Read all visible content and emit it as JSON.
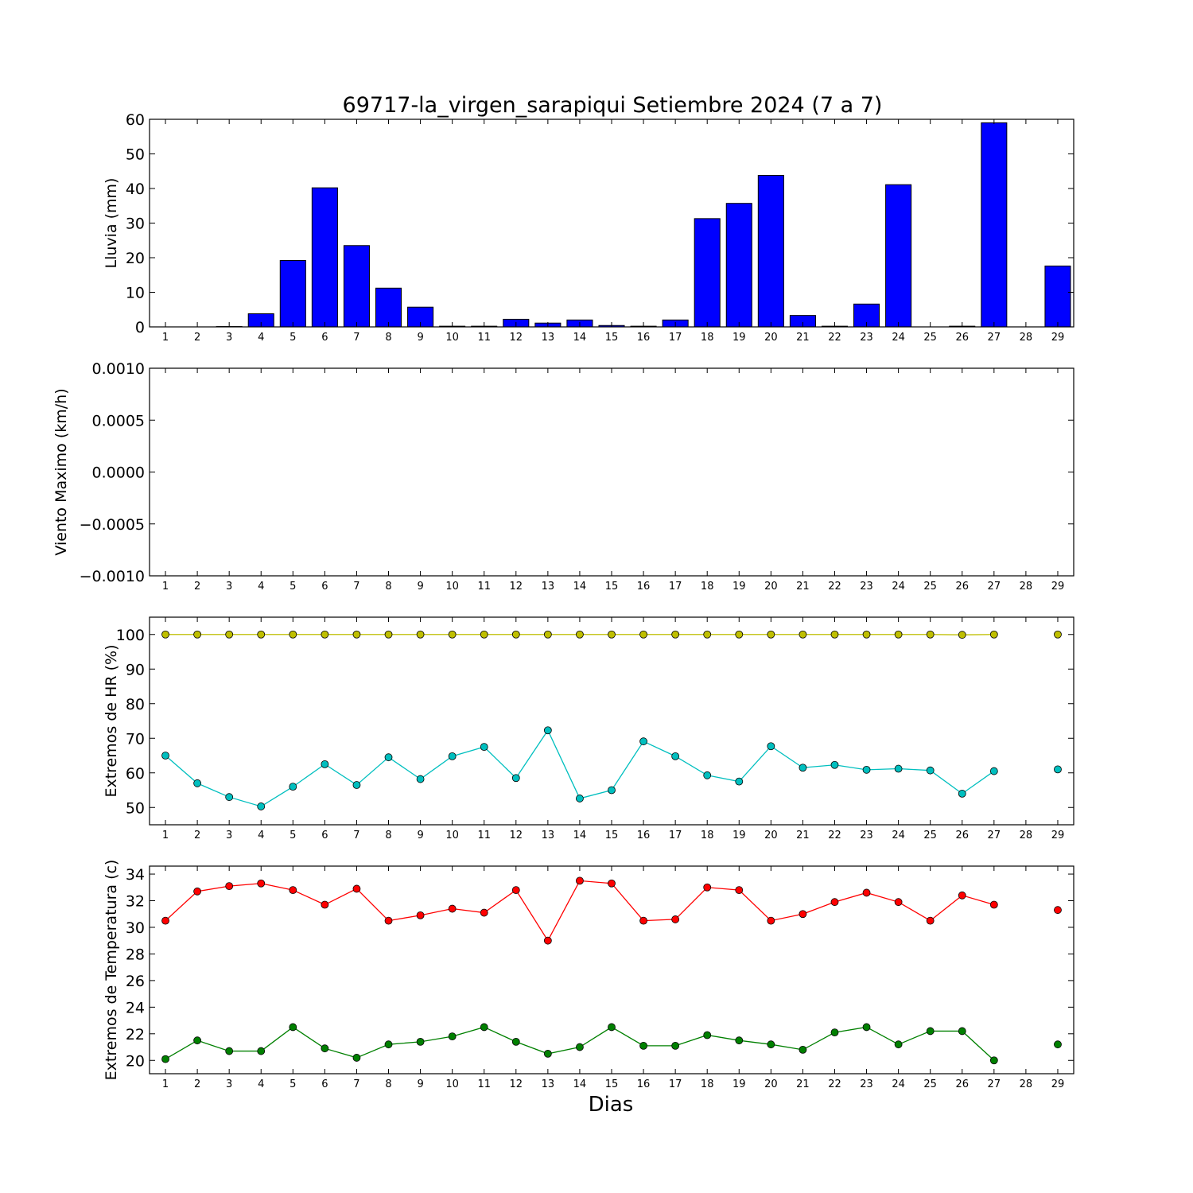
{
  "title": "69717-la_virgen_sarapiqui Setiembre 2024  (7 a 7)",
  "xlabel": "Dias",
  "chart_data": [
    {
      "type": "bar",
      "ylabel": "Lluvia (mm)",
      "ylim": [
        0,
        60
      ],
      "yticks": [
        "0",
        "10",
        "20",
        "30",
        "40",
        "50",
        "60"
      ],
      "xticks": [
        "1",
        "2",
        "3",
        "4",
        "5",
        "6",
        "7",
        "8",
        "9",
        "10",
        "11",
        "12",
        "13",
        "14",
        "15",
        "16",
        "17",
        "18",
        "19",
        "20",
        "21",
        "22",
        "23",
        "24",
        "25",
        "26",
        "27",
        "28",
        "29"
      ],
      "color": "#0000ff",
      "x": [
        1,
        2,
        3,
        4,
        5,
        6,
        7,
        8,
        9,
        10,
        11,
        12,
        13,
        14,
        15,
        16,
        17,
        18,
        19,
        20,
        21,
        22,
        23,
        24,
        25,
        26,
        27,
        28,
        29
      ],
      "values": [
        0,
        0,
        0.1,
        3.8,
        19.2,
        40.2,
        23.5,
        11.2,
        5.7,
        0.2,
        0.2,
        2.2,
        1.1,
        2.0,
        0.4,
        0.2,
        2.0,
        31.3,
        35.7,
        43.8,
        3.3,
        0.2,
        6.6,
        41.1,
        0,
        0.2,
        59.0,
        0,
        17.6
      ]
    },
    {
      "type": "line",
      "ylabel": "Viento Maximo (km/h)",
      "ylim": [
        -0.001,
        0.001
      ],
      "yticks": [
        "−0.0010",
        "−0.0005",
        "0.0000",
        "0.0005",
        "0.0010"
      ],
      "xticks": [
        "1",
        "2",
        "3",
        "4",
        "5",
        "6",
        "7",
        "8",
        "9",
        "10",
        "11",
        "12",
        "13",
        "14",
        "15",
        "16",
        "17",
        "18",
        "19",
        "20",
        "21",
        "22",
        "23",
        "24",
        "25",
        "26",
        "27",
        "28",
        "29"
      ],
      "series": []
    },
    {
      "type": "line",
      "ylabel": "Extremos de HR (%)",
      "ylim": [
        45,
        105
      ],
      "yticks": [
        "50",
        "60",
        "70",
        "80",
        "90",
        "100"
      ],
      "xticks": [
        "1",
        "2",
        "3",
        "4",
        "5",
        "6",
        "7",
        "8",
        "9",
        "10",
        "11",
        "12",
        "13",
        "14",
        "15",
        "16",
        "17",
        "18",
        "19",
        "20",
        "21",
        "22",
        "23",
        "24",
        "25",
        "26",
        "27",
        "28",
        "29"
      ],
      "x": [
        1,
        2,
        3,
        4,
        5,
        6,
        7,
        8,
        9,
        10,
        11,
        12,
        13,
        14,
        15,
        16,
        17,
        18,
        19,
        20,
        21,
        22,
        23,
        24,
        25,
        26,
        27,
        28,
        29
      ],
      "series": [
        {
          "color": "#bfbf00",
          "values": [
            100,
            100,
            100,
            100,
            100,
            100,
            100,
            100,
            100,
            100,
            100,
            100,
            100,
            100,
            100,
            100,
            100,
            100,
            100,
            100,
            100,
            100,
            100,
            100,
            100,
            99.9,
            100,
            null,
            100
          ]
        },
        {
          "color": "#00bfbf",
          "values": [
            65,
            57,
            53,
            50.3,
            56,
            62.5,
            56.5,
            64.5,
            58.2,
            64.8,
            67.5,
            58.5,
            72.3,
            52.6,
            55,
            69.1,
            64.8,
            59.3,
            57.5,
            67.7,
            61.5,
            62.3,
            60.9,
            61.2,
            60.7,
            54,
            60.5,
            null,
            61
          ]
        }
      ]
    },
    {
      "type": "line",
      "ylabel": "Extremos de Temperatura (c)",
      "ylim": [
        19,
        34.6
      ],
      "yticks": [
        "20",
        "22",
        "24",
        "26",
        "28",
        "30",
        "32",
        "34"
      ],
      "xticks": [
        "1",
        "2",
        "3",
        "4",
        "5",
        "6",
        "7",
        "8",
        "9",
        "10",
        "11",
        "12",
        "13",
        "14",
        "15",
        "16",
        "17",
        "18",
        "19",
        "20",
        "21",
        "22",
        "23",
        "24",
        "25",
        "26",
        "27",
        "28",
        "29"
      ],
      "x": [
        1,
        2,
        3,
        4,
        5,
        6,
        7,
        8,
        9,
        10,
        11,
        12,
        13,
        14,
        15,
        16,
        17,
        18,
        19,
        20,
        21,
        22,
        23,
        24,
        25,
        26,
        27,
        28,
        29
      ],
      "series": [
        {
          "color": "#ff0000",
          "values": [
            30.5,
            32.7,
            33.1,
            33.3,
            32.8,
            31.7,
            32.9,
            30.5,
            30.9,
            31.4,
            31.1,
            32.8,
            29,
            33.5,
            33.3,
            30.5,
            30.6,
            33,
            32.8,
            30.5,
            31,
            31.9,
            32.6,
            31.9,
            30.5,
            32.4,
            31.7,
            null,
            31.3
          ]
        },
        {
          "color": "#008000",
          "values": [
            20.1,
            21.5,
            20.7,
            20.7,
            22.5,
            20.9,
            20.2,
            21.2,
            21.4,
            21.8,
            22.5,
            21.4,
            20.5,
            21,
            22.5,
            21.1,
            21.1,
            21.9,
            21.5,
            21.2,
            20.8,
            22.1,
            22.5,
            21.2,
            22.2,
            22.2,
            20,
            null,
            21.2
          ]
        }
      ]
    }
  ]
}
